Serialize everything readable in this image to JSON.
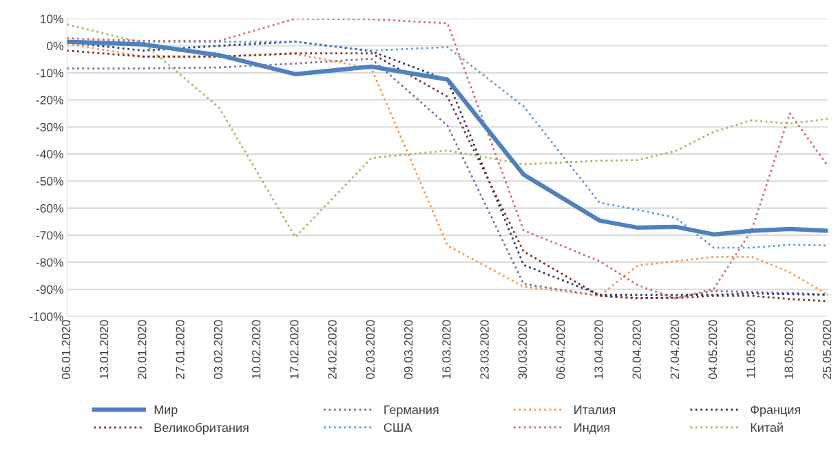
{
  "chart_data": {
    "type": "line",
    "x": [
      "2020-01-06",
      "2020-01-20",
      "2020-02-03",
      "2020-02-17",
      "2020-03-02",
      "2020-03-16",
      "2020-03-30",
      "2020-04-13",
      "2020-04-20",
      "2020-04-27",
      "2020-05-04",
      "2020-05-11",
      "2020-05-18",
      "2020-05-25"
    ],
    "series": [
      {
        "name": "Мир",
        "color": "#4f81bd",
        "line_style": "solid",
        "values": [
          1.5,
          0.5,
          -3.5,
          -10.5,
          -7.7,
          -12.5,
          -47.6,
          -64.6,
          -67.2,
          -66.9,
          -69.7,
          -68.4,
          -67.7,
          -68.4
        ]
      },
      {
        "name": "Германия",
        "color": "#8064a2",
        "line_style": "dotted",
        "values": [
          -8.4,
          -8.4,
          -8,
          -6.6,
          -4.8,
          -29.5,
          -88,
          -92.4,
          -93.4,
          -93,
          -90.6,
          -91,
          -91.3,
          -92
        ]
      },
      {
        "name": "Италия",
        "color": "#f79646",
        "line_style": "dotted",
        "values": [
          0.8,
          -4,
          -4,
          -3,
          -8.4,
          -73.8,
          -89,
          -92.4,
          -81.2,
          -79.6,
          -78,
          -78,
          -83.7,
          -92
        ]
      },
      {
        "name": "Франция",
        "color": "#1f3864",
        "line_style": "dotted",
        "values": [
          1.3,
          -1.8,
          0,
          1.5,
          -2,
          -12.7,
          -81,
          -92,
          -92,
          -92,
          -92,
          -91.5,
          -91.8,
          -92
        ]
      },
      {
        "name": "Великобритания",
        "color": "#772c2a",
        "line_style": "dotted",
        "values": [
          -1.8,
          -4,
          -4,
          -2.8,
          -2.8,
          -18.8,
          -76,
          -92.4,
          -93.2,
          -93.2,
          -92.4,
          -92.4,
          -93.6,
          -94.4
        ]
      },
      {
        "name": "США",
        "color": "#5b9bd5",
        "line_style": "dotted",
        "values": [
          1.8,
          1.5,
          1.5,
          1.5,
          -1.8,
          -0.5,
          -22.4,
          -58,
          -60.6,
          -63.6,
          -74.6,
          -74.6,
          -73.5,
          -73.8
        ]
      },
      {
        "name": "Индия",
        "color": "#d06a6a",
        "line_style": "dotted",
        "values": [
          2.8,
          1.8,
          1.8,
          10,
          9.8,
          8.3,
          -68.2,
          -79.6,
          -88.5,
          -93.4,
          -89.8,
          -68,
          -25,
          -44.5
        ]
      },
      {
        "name": "Китай",
        "color": "#9bbb59",
        "line_style": "dotted",
        "values": [
          7.9,
          1,
          -22.9,
          -70.7,
          -41.5,
          -38.7,
          -43.8,
          -42.5,
          -42.2,
          -38.9,
          -31.8,
          -27.5,
          -28.8,
          -27
        ]
      }
    ],
    "xlim": [
      "2020-01-06",
      "2020-05-25"
    ],
    "xticks": [
      {
        "value": "2020-01-06",
        "label": "06.01.2020"
      },
      {
        "value": "2020-01-13",
        "label": "13.01.2020"
      },
      {
        "value": "2020-01-20",
        "label": "20.01.2020"
      },
      {
        "value": "2020-01-27",
        "label": "27.01.2020"
      },
      {
        "value": "2020-02-03",
        "label": "03.02.2020"
      },
      {
        "value": "2020-02-10",
        "label": "10.02.2020"
      },
      {
        "value": "2020-02-17",
        "label": "17.02.2020"
      },
      {
        "value": "2020-02-24",
        "label": "24.02.2020"
      },
      {
        "value": "2020-03-02",
        "label": "02.03.2020"
      },
      {
        "value": "2020-03-09",
        "label": "09.03.2020"
      },
      {
        "value": "2020-03-16",
        "label": "16.03.2020"
      },
      {
        "value": "2020-03-23",
        "label": "23.03.2020"
      },
      {
        "value": "2020-03-30",
        "label": "30.03.2020"
      },
      {
        "value": "2020-04-06",
        "label": "06.04.2020"
      },
      {
        "value": "2020-04-13",
        "label": "13.04.2020"
      },
      {
        "value": "2020-04-20",
        "label": "20.04.2020"
      },
      {
        "value": "2020-04-27",
        "label": "27.04.2020"
      },
      {
        "value": "2020-05-04",
        "label": "04.05.2020"
      },
      {
        "value": "2020-05-11",
        "label": "11.05.2020"
      },
      {
        "value": "2020-05-18",
        "label": "18.05.2020"
      },
      {
        "value": "2020-05-25",
        "label": "25.05.2020"
      }
    ],
    "ylim": [
      -100,
      10
    ],
    "yticks": [
      {
        "value": 10,
        "label": "10%"
      },
      {
        "value": 0,
        "label": "0%"
      },
      {
        "value": -10,
        "label": "-10%"
      },
      {
        "value": -20,
        "label": "-20%"
      },
      {
        "value": -30,
        "label": "-30%"
      },
      {
        "value": -40,
        "label": "-40%"
      },
      {
        "value": -50,
        "label": "-50%"
      },
      {
        "value": -60,
        "label": "-60%"
      },
      {
        "value": -70,
        "label": "-70%"
      },
      {
        "value": -80,
        "label": "-80%"
      },
      {
        "value": -90,
        "label": "-90%"
      },
      {
        "value": -100,
        "label": "-100%"
      }
    ],
    "grid": "y",
    "legend": "bottom"
  }
}
